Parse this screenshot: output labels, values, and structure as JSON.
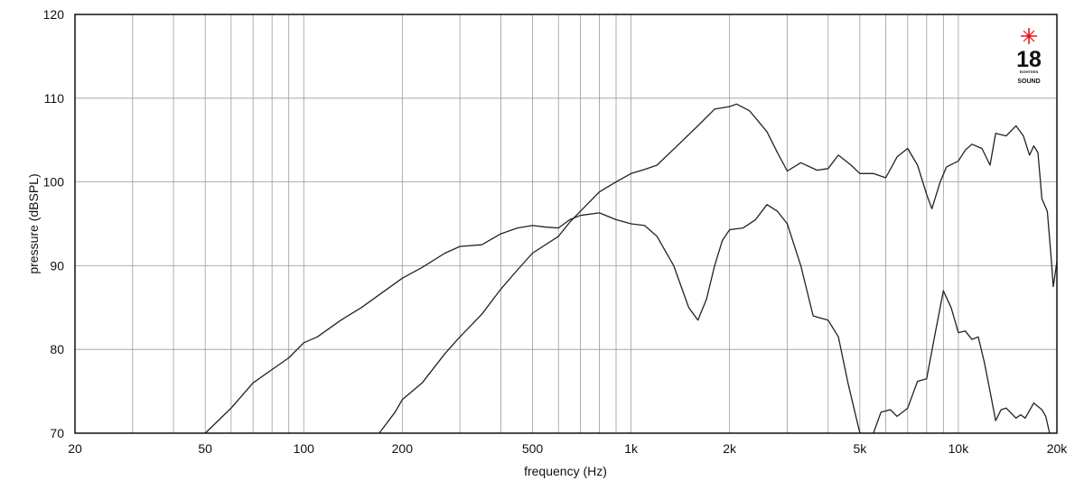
{
  "chart_data": {
    "type": "line",
    "title": "",
    "xlabel": "frequency (Hz)",
    "ylabel": "pressure (dBSPL)",
    "x_scale": "log",
    "xlim": [
      20,
      20000
    ],
    "ylim": [
      70,
      120
    ],
    "grid": true,
    "x_ticks": [
      {
        "value": 20,
        "label": "20"
      },
      {
        "value": 50,
        "label": "50"
      },
      {
        "value": 100,
        "label": "100"
      },
      {
        "value": 200,
        "label": "200"
      },
      {
        "value": 500,
        "label": "500"
      },
      {
        "value": 1000,
        "label": "1k"
      },
      {
        "value": 2000,
        "label": "2k"
      },
      {
        "value": 5000,
        "label": "5k"
      },
      {
        "value": 10000,
        "label": "10k"
      },
      {
        "value": 20000,
        "label": "20k"
      }
    ],
    "y_ticks": [
      {
        "value": 70,
        "label": "70"
      },
      {
        "value": 80,
        "label": "80"
      },
      {
        "value": 90,
        "label": "90"
      },
      {
        "value": 100,
        "label": "100"
      },
      {
        "value": 110,
        "label": "110"
      },
      {
        "value": 120,
        "label": "120"
      }
    ],
    "series": [
      {
        "color": "#222222",
        "points": [
          [
            50,
            70
          ],
          [
            60,
            73
          ],
          [
            70,
            76
          ],
          [
            80,
            77.6
          ],
          [
            90,
            79
          ],
          [
            100,
            80.8
          ],
          [
            110,
            81.5
          ],
          [
            130,
            83.5
          ],
          [
            150,
            85
          ],
          [
            200,
            88.5
          ],
          [
            230,
            89.8
          ],
          [
            270,
            91.5
          ],
          [
            300,
            92.3
          ],
          [
            350,
            92.5
          ],
          [
            400,
            93.8
          ],
          [
            450,
            94.5
          ],
          [
            500,
            94.8
          ],
          [
            550,
            94.6
          ],
          [
            600,
            94.5
          ],
          [
            650,
            95.5
          ],
          [
            700,
            96
          ],
          [
            800,
            96.3
          ],
          [
            900,
            95.5
          ],
          [
            1000,
            95
          ],
          [
            1100,
            94.8
          ],
          [
            1200,
            93.5
          ],
          [
            1350,
            90
          ],
          [
            1500,
            85
          ],
          [
            1600,
            83.5
          ],
          [
            1700,
            86
          ],
          [
            1800,
            90
          ],
          [
            1900,
            93
          ],
          [
            2000,
            94.3
          ],
          [
            2200,
            94.5
          ],
          [
            2400,
            95.5
          ],
          [
            2600,
            97.3
          ],
          [
            2800,
            96.5
          ],
          [
            3000,
            95
          ],
          [
            3300,
            90
          ],
          [
            3600,
            84
          ],
          [
            4000,
            83.5
          ],
          [
            4300,
            81.5
          ],
          [
            4600,
            76
          ],
          [
            5000,
            70
          ]
        ]
      },
      {
        "color": "#222222",
        "points": [
          [
            170,
            70
          ],
          [
            190,
            72.5
          ],
          [
            200,
            74
          ],
          [
            230,
            76
          ],
          [
            270,
            79.5
          ],
          [
            300,
            81.5
          ],
          [
            350,
            84.2
          ],
          [
            400,
            87.2
          ],
          [
            450,
            89.5
          ],
          [
            500,
            91.5
          ],
          [
            600,
            93.5
          ],
          [
            650,
            95.2
          ],
          [
            700,
            96.5
          ],
          [
            800,
            98.8
          ],
          [
            900,
            100
          ],
          [
            1000,
            101
          ],
          [
            1100,
            101.5
          ],
          [
            1200,
            102
          ],
          [
            1400,
            104.5
          ],
          [
            1600,
            106.7
          ],
          [
            1800,
            108.7
          ],
          [
            2000,
            109
          ],
          [
            2100,
            109.3
          ],
          [
            2300,
            108.5
          ],
          [
            2600,
            106
          ],
          [
            2800,
            103.5
          ],
          [
            3000,
            101.3
          ],
          [
            3300,
            102.3
          ],
          [
            3700,
            101.4
          ],
          [
            4000,
            101.6
          ],
          [
            4300,
            103.2
          ],
          [
            4700,
            102
          ],
          [
            5000,
            101
          ],
          [
            5500,
            101
          ],
          [
            6000,
            100.5
          ],
          [
            6500,
            103
          ],
          [
            7000,
            104
          ],
          [
            7500,
            102
          ],
          [
            8000,
            98.5
          ],
          [
            8300,
            96.8
          ],
          [
            8800,
            100
          ],
          [
            9200,
            101.8
          ],
          [
            10000,
            102.5
          ],
          [
            10500,
            103.8
          ],
          [
            11000,
            104.5
          ],
          [
            11800,
            104
          ],
          [
            12500,
            102
          ],
          [
            13000,
            105.8
          ],
          [
            14000,
            105.5
          ],
          [
            15000,
            106.7
          ],
          [
            15800,
            105.5
          ],
          [
            16500,
            103.2
          ],
          [
            17000,
            104.3
          ],
          [
            17500,
            103.5
          ],
          [
            18000,
            98
          ],
          [
            18700,
            96.5
          ],
          [
            19200,
            91
          ],
          [
            19500,
            87.5
          ],
          [
            20000,
            90.5
          ]
        ]
      },
      {
        "color": "#222222",
        "points": [
          [
            5500,
            70
          ],
          [
            5800,
            72.5
          ],
          [
            6200,
            72.8
          ],
          [
            6500,
            72
          ],
          [
            7000,
            73
          ],
          [
            7500,
            76.2
          ],
          [
            8000,
            76.5
          ],
          [
            8500,
            82
          ],
          [
            9000,
            87
          ],
          [
            9500,
            85
          ],
          [
            10000,
            82
          ],
          [
            10500,
            82.2
          ],
          [
            11000,
            81.2
          ],
          [
            11500,
            81.5
          ],
          [
            12000,
            78.5
          ],
          [
            12500,
            75
          ],
          [
            13000,
            71.5
          ],
          [
            13500,
            72.8
          ],
          [
            14000,
            73
          ],
          [
            15000,
            71.8
          ],
          [
            15500,
            72.2
          ],
          [
            16000,
            71.8
          ],
          [
            17000,
            73.6
          ],
          [
            18000,
            72.8
          ],
          [
            18500,
            72
          ],
          [
            19000,
            70
          ]
        ]
      }
    ]
  },
  "logo": {
    "number": "18",
    "small_text": "EIGHTEEN",
    "word": "SOUND",
    "star_color": "#e8161b"
  }
}
